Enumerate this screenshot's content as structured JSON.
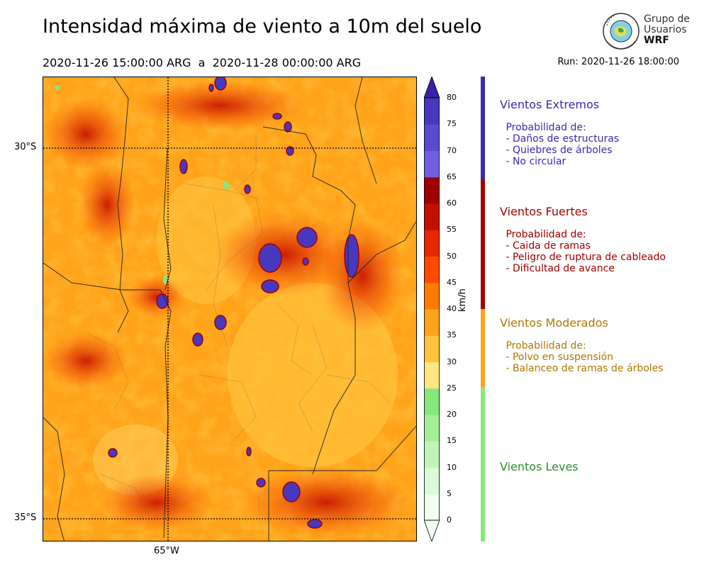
{
  "header": {
    "title": "Intensidad máxima de viento a 10m del suelo",
    "period": "2020-11-26 15:00:00 ARG  a  2020-11-28 00:00:00 ARG",
    "run": "Run: 2020-11-26 18:00:00"
  },
  "logo": {
    "line1": "Grupo de",
    "line2": "Usuarios",
    "line3": "WRF"
  },
  "map": {
    "lat_labels": [
      "30°S",
      "35°S"
    ],
    "lon_labels": [
      "65°W"
    ]
  },
  "colorbar": {
    "unit": "km/h",
    "ticks": [
      "0",
      "5",
      "10",
      "15",
      "20",
      "25",
      "30",
      "35",
      "40",
      "45",
      "50",
      "55",
      "60",
      "65",
      "70",
      "75",
      "80"
    ],
    "colors": [
      "#f0fff0",
      "#d9fbd6",
      "#c0f5b8",
      "#a4ee98",
      "#86e77a",
      "#ffe680",
      "#ffc33d",
      "#ffa31a",
      "#ff7a00",
      "#ff4a00",
      "#e62800",
      "#c41000",
      "#a00000",
      "#7060e0",
      "#5a4ad2",
      "#4838c0",
      "#3a20a8"
    ]
  },
  "categories": [
    {
      "title": "Vientos Extremos",
      "color": "#3a2ab0",
      "lines": [
        " Probabilidad de:",
        " - Daños de estructuras",
        " - Quiebres de árboles",
        " - No circular"
      ]
    },
    {
      "title": "Vientos Fuertes",
      "color": "#a00000",
      "lines": [
        " Probabilidad de:",
        " - Caida de ramas",
        " - Peligro de ruptura de cableado",
        " - Dificultad de avance"
      ]
    },
    {
      "title": "Vientos Moderados",
      "color": "#b07800",
      "lines": [
        " Probabilidad de:",
        " - Polvo en suspensión",
        " - Balanceo de ramas de árboles"
      ]
    },
    {
      "title": "Vientos Leves",
      "color": "#2e8b2e",
      "lines": []
    }
  ]
}
